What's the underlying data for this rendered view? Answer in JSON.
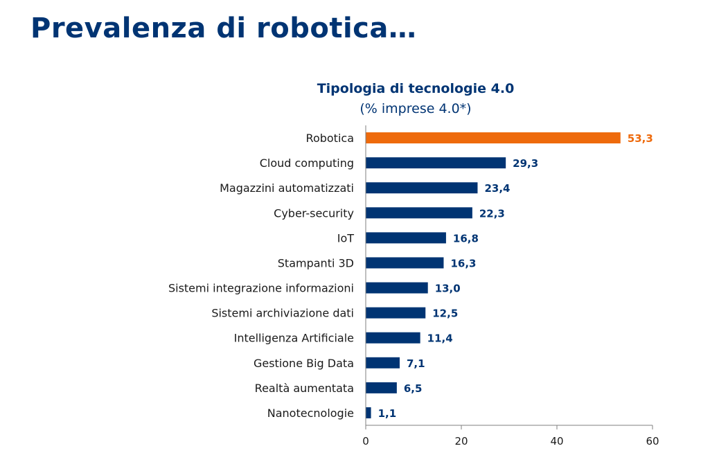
{
  "page": {
    "title": "Prevalenza di robotica…"
  },
  "chart_data": {
    "type": "bar",
    "orientation": "horizontal",
    "title": "Tipologia di tecnologie 4.0",
    "subtitle": "(% imprese 4.0*)",
    "categories": [
      "Robotica",
      "Cloud computing",
      "Magazzini automatizzati",
      "Cyber-security",
      "IoT",
      "Stampanti 3D",
      "Sistemi integrazione informazioni",
      "Sistemi archiviazione dati",
      "Intelligenza Artificiale",
      "Gestione Big Data",
      "Realtà aumentata",
      "Nanotecnologie"
    ],
    "values": [
      53.3,
      29.3,
      23.4,
      22.3,
      16.8,
      16.3,
      13.0,
      12.5,
      11.4,
      7.1,
      6.5,
      1.1
    ],
    "value_labels": [
      "53,3",
      "29,3",
      "23,4",
      "22,3",
      "16,8",
      "16,3",
      "13,0",
      "12,5",
      "11,4",
      "7,1",
      "6,5",
      "1,1"
    ],
    "highlight_index": 0,
    "colors": {
      "default": "#003473",
      "highlight": "#EE6A0C"
    },
    "xlim": [
      0,
      60
    ],
    "xticks": [
      0,
      20,
      40,
      60
    ],
    "grid": false,
    "legend": "none"
  }
}
